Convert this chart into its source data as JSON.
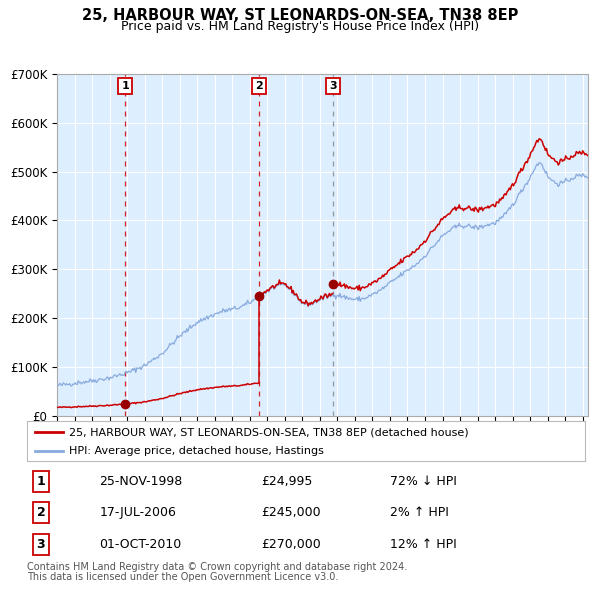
{
  "title": "25, HARBOUR WAY, ST LEONARDS-ON-SEA, TN38 8EP",
  "subtitle": "Price paid vs. HM Land Registry's House Price Index (HPI)",
  "transactions": [
    {
      "num": 1,
      "date_str": "25-NOV-1998",
      "t": 1998.9,
      "price": 24995,
      "hpi_rel": "72% ↓ HPI"
    },
    {
      "num": 2,
      "date_str": "17-JUL-2006",
      "t": 2006.55,
      "price": 245000,
      "hpi_rel": "2% ↑ HPI"
    },
    {
      "num": 3,
      "date_str": "01-OCT-2010",
      "t": 2010.75,
      "price": 270000,
      "hpi_rel": "12% ↑ HPI"
    }
  ],
  "legend_line1": "25, HARBOUR WAY, ST LEONARDS-ON-SEA, TN38 8EP (detached house)",
  "legend_line2": "HPI: Average price, detached house, Hastings",
  "footer1": "Contains HM Land Registry data © Crown copyright and database right 2024.",
  "footer2": "This data is licensed under the Open Government Licence v3.0.",
  "fig_bg_color": "#ffffff",
  "plot_bg_color": "#ddeeff",
  "red_line_color": "#cc0000",
  "blue_line_color": "#88aadd",
  "vline_red_color": "#cc0000",
  "vline_grey_color": "#888888",
  "grid_color": "#ffffff",
  "dot_color": "#990000",
  "ylim": [
    0,
    700000
  ],
  "xlim_start": 1995.0,
  "xlim_end": 2025.3,
  "hpi_anchors": [
    [
      1995.0,
      62000
    ],
    [
      1996.0,
      67000
    ],
    [
      1997.0,
      72000
    ],
    [
      1998.0,
      78000
    ],
    [
      1999.0,
      88000
    ],
    [
      2000.0,
      103000
    ],
    [
      2001.0,
      128000
    ],
    [
      2002.0,
      163000
    ],
    [
      2003.0,
      192000
    ],
    [
      2003.8,
      205000
    ],
    [
      2004.5,
      215000
    ],
    [
      2005.0,
      218000
    ],
    [
      2005.5,
      223000
    ],
    [
      2006.0,
      232000
    ],
    [
      2006.5,
      242000
    ],
    [
      2007.0,
      255000
    ],
    [
      2007.5,
      265000
    ],
    [
      2008.0,
      268000
    ],
    [
      2008.5,
      252000
    ],
    [
      2009.0,
      230000
    ],
    [
      2009.5,
      228000
    ],
    [
      2010.0,
      238000
    ],
    [
      2010.5,
      245000
    ],
    [
      2011.0,
      248000
    ],
    [
      2011.5,
      242000
    ],
    [
      2012.0,
      238000
    ],
    [
      2012.5,
      240000
    ],
    [
      2013.0,
      248000
    ],
    [
      2013.5,
      258000
    ],
    [
      2014.0,
      272000
    ],
    [
      2014.5,
      285000
    ],
    [
      2015.0,
      298000
    ],
    [
      2015.5,
      310000
    ],
    [
      2016.0,
      328000
    ],
    [
      2016.5,
      348000
    ],
    [
      2017.0,
      368000
    ],
    [
      2017.5,
      382000
    ],
    [
      2018.0,
      390000
    ],
    [
      2018.5,
      388000
    ],
    [
      2019.0,
      385000
    ],
    [
      2019.5,
      390000
    ],
    [
      2020.0,
      395000
    ],
    [
      2020.5,
      408000
    ],
    [
      2021.0,
      432000
    ],
    [
      2021.5,
      460000
    ],
    [
      2022.0,
      488000
    ],
    [
      2022.3,
      510000
    ],
    [
      2022.6,
      520000
    ],
    [
      2022.8,
      505000
    ],
    [
      2023.0,
      490000
    ],
    [
      2023.3,
      480000
    ],
    [
      2023.6,
      475000
    ],
    [
      2024.0,
      478000
    ],
    [
      2024.3,
      485000
    ],
    [
      2024.6,
      490000
    ],
    [
      2025.0,
      492000
    ],
    [
      2025.3,
      490000
    ]
  ]
}
